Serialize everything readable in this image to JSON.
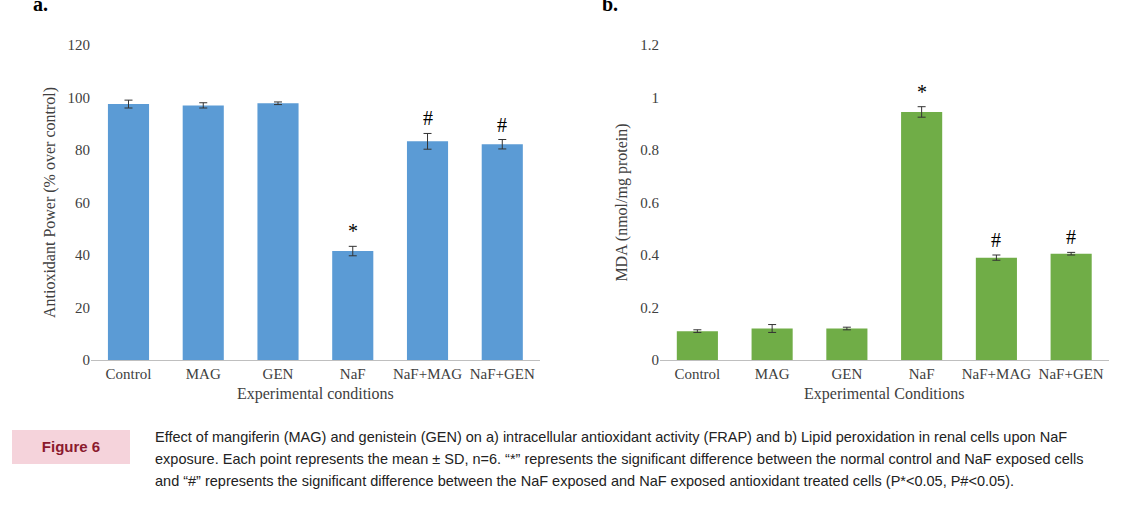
{
  "chart_data": [
    {
      "type": "bar",
      "title": "a.",
      "categories": [
        "Control",
        "MAG",
        "GEN",
        "NaF",
        "NaF+MAG",
        "NaF+GEN"
      ],
      "values": [
        97.5,
        97,
        97.8,
        41.5,
        83.3,
        82.2
      ],
      "errors": [
        1.5,
        1,
        0.5,
        1.8,
        3,
        1.8
      ],
      "color": "#5b9bd5",
      "x_label": "Experimental conditions",
      "y_label": "Antioxidant Power (% over control)",
      "ylim": [
        0,
        120
      ],
      "yticks": [
        0,
        20,
        40,
        60,
        80,
        100,
        120
      ],
      "grid": false,
      "annotations": [
        {
          "x": "NaF",
          "text": "*"
        },
        {
          "x": "NaF+MAG",
          "text": "#"
        },
        {
          "x": "NaF+GEN",
          "text": "#"
        }
      ]
    },
    {
      "type": "bar",
      "title": "b.",
      "categories": [
        "Control",
        "MAG",
        "GEN",
        "NaF",
        "NaF+MAG",
        "NaF+GEN"
      ],
      "values": [
        0.11,
        0.12,
        0.12,
        0.945,
        0.39,
        0.405
      ],
      "errors": [
        0.005,
        0.015,
        0.005,
        0.02,
        0.01,
        0.005
      ],
      "color": "#70ad47",
      "x_label": "Experimental Conditions",
      "y_label": "MDA (nmol/mg protein)",
      "ylim": [
        0,
        1.2
      ],
      "yticks": [
        0,
        0.2,
        0.4,
        0.6,
        0.8,
        1,
        1.2
      ],
      "grid": false,
      "annotations": [
        {
          "x": "NaF",
          "text": "*"
        },
        {
          "x": "NaF+MAG",
          "text": "#"
        },
        {
          "x": "NaF+GEN",
          "text": "#"
        }
      ]
    }
  ],
  "caption": {
    "label": "Figure 6",
    "text": "Effect of mangiferin (MAG) and genistein (GEN) on a) intracellular antioxidant activity (FRAP) and b) Lipid peroxidation in renal cells upon NaF exposure. Each point represents the mean ± SD, n=6. “*” represents the significant difference between the normal control and NaF exposed cells and “#” represents the significant difference between the NaF exposed and NaF exposed antioxidant treated cells (P*<0.05, P#<0.05)."
  }
}
